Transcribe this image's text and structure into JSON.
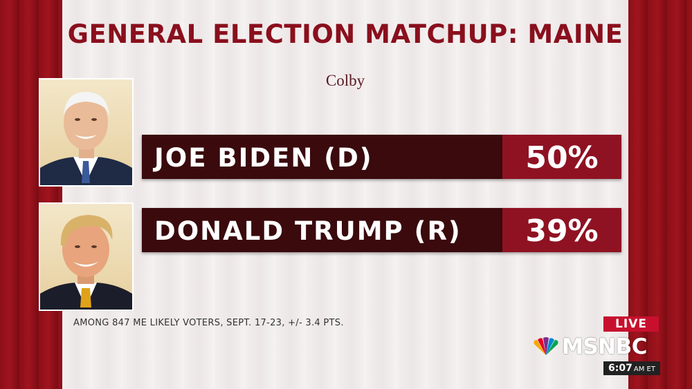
{
  "graphic": {
    "title": "GENERAL ELECTION MATCHUP: MAINE",
    "source": "Colby",
    "footnote": "AMONG 847 ME LIKELY VOTERS, SEPT. 17-23, +/- 3.4 PTS."
  },
  "candidates": [
    {
      "name": "JOE BIDEN (D)",
      "percent_label": "50%",
      "percent": 50,
      "photo": "candidate-photo"
    },
    {
      "name": "DONALD TRUMP (R)",
      "percent_label": "39%",
      "percent": 39,
      "photo": "candidate-photo"
    }
  ],
  "broadcast": {
    "live_label": "LIVE",
    "network": "MSNBC",
    "time": "6:07",
    "time_suffix": "AM ET"
  },
  "colors": {
    "title_red": "#8a0f1d",
    "bar_dark": "#3a0a0d",
    "percent_red": "#8f1222",
    "live_red": "#c8102e"
  }
}
